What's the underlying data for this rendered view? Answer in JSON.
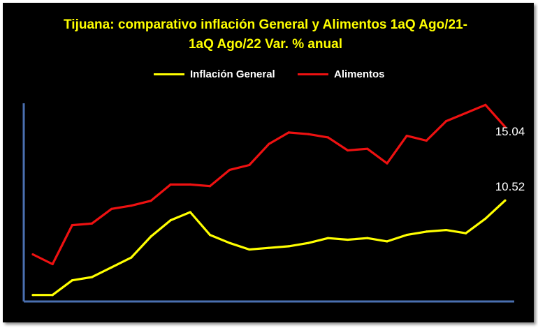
{
  "chart_data": {
    "type": "line",
    "title_lines": [
      "Tijuana: comparativo inflación General y Alimentos 1aQ Ago/21-",
      "1aQ Ago/22 Var. % anual"
    ],
    "xlabel": "",
    "ylabel": "",
    "ylim": [
      4.3,
      16.5
    ],
    "legend_position": "top-center",
    "series": [
      {
        "name": "Inflación General",
        "color": "#ffff00",
        "values": [
          4.7,
          4.7,
          5.6,
          5.8,
          6.4,
          7.0,
          8.3,
          9.3,
          9.8,
          8.4,
          7.9,
          7.5,
          7.6,
          7.7,
          7.9,
          8.2,
          8.1,
          8.2,
          8.0,
          8.4,
          8.6,
          8.7,
          8.5,
          9.4,
          10.52
        ]
      },
      {
        "name": "Alimentos",
        "color": "#ee1111",
        "values": [
          7.2,
          6.6,
          9.0,
          9.1,
          10.0,
          10.2,
          10.5,
          11.5,
          11.5,
          11.4,
          12.4,
          12.7,
          14.0,
          14.7,
          14.6,
          14.4,
          13.6,
          13.7,
          12.8,
          14.5,
          14.2,
          15.4,
          15.9,
          16.4,
          15.04
        ]
      }
    ],
    "data_labels": [
      {
        "series": "Inflación General",
        "index": 24,
        "text": "10.52"
      },
      {
        "series": "Alimentos",
        "index": 24,
        "text": "15.04"
      }
    ]
  },
  "axis_color": "#4a6fb0",
  "background": "#000000",
  "title_color": "#ffff00",
  "label_color": "#ffffff"
}
